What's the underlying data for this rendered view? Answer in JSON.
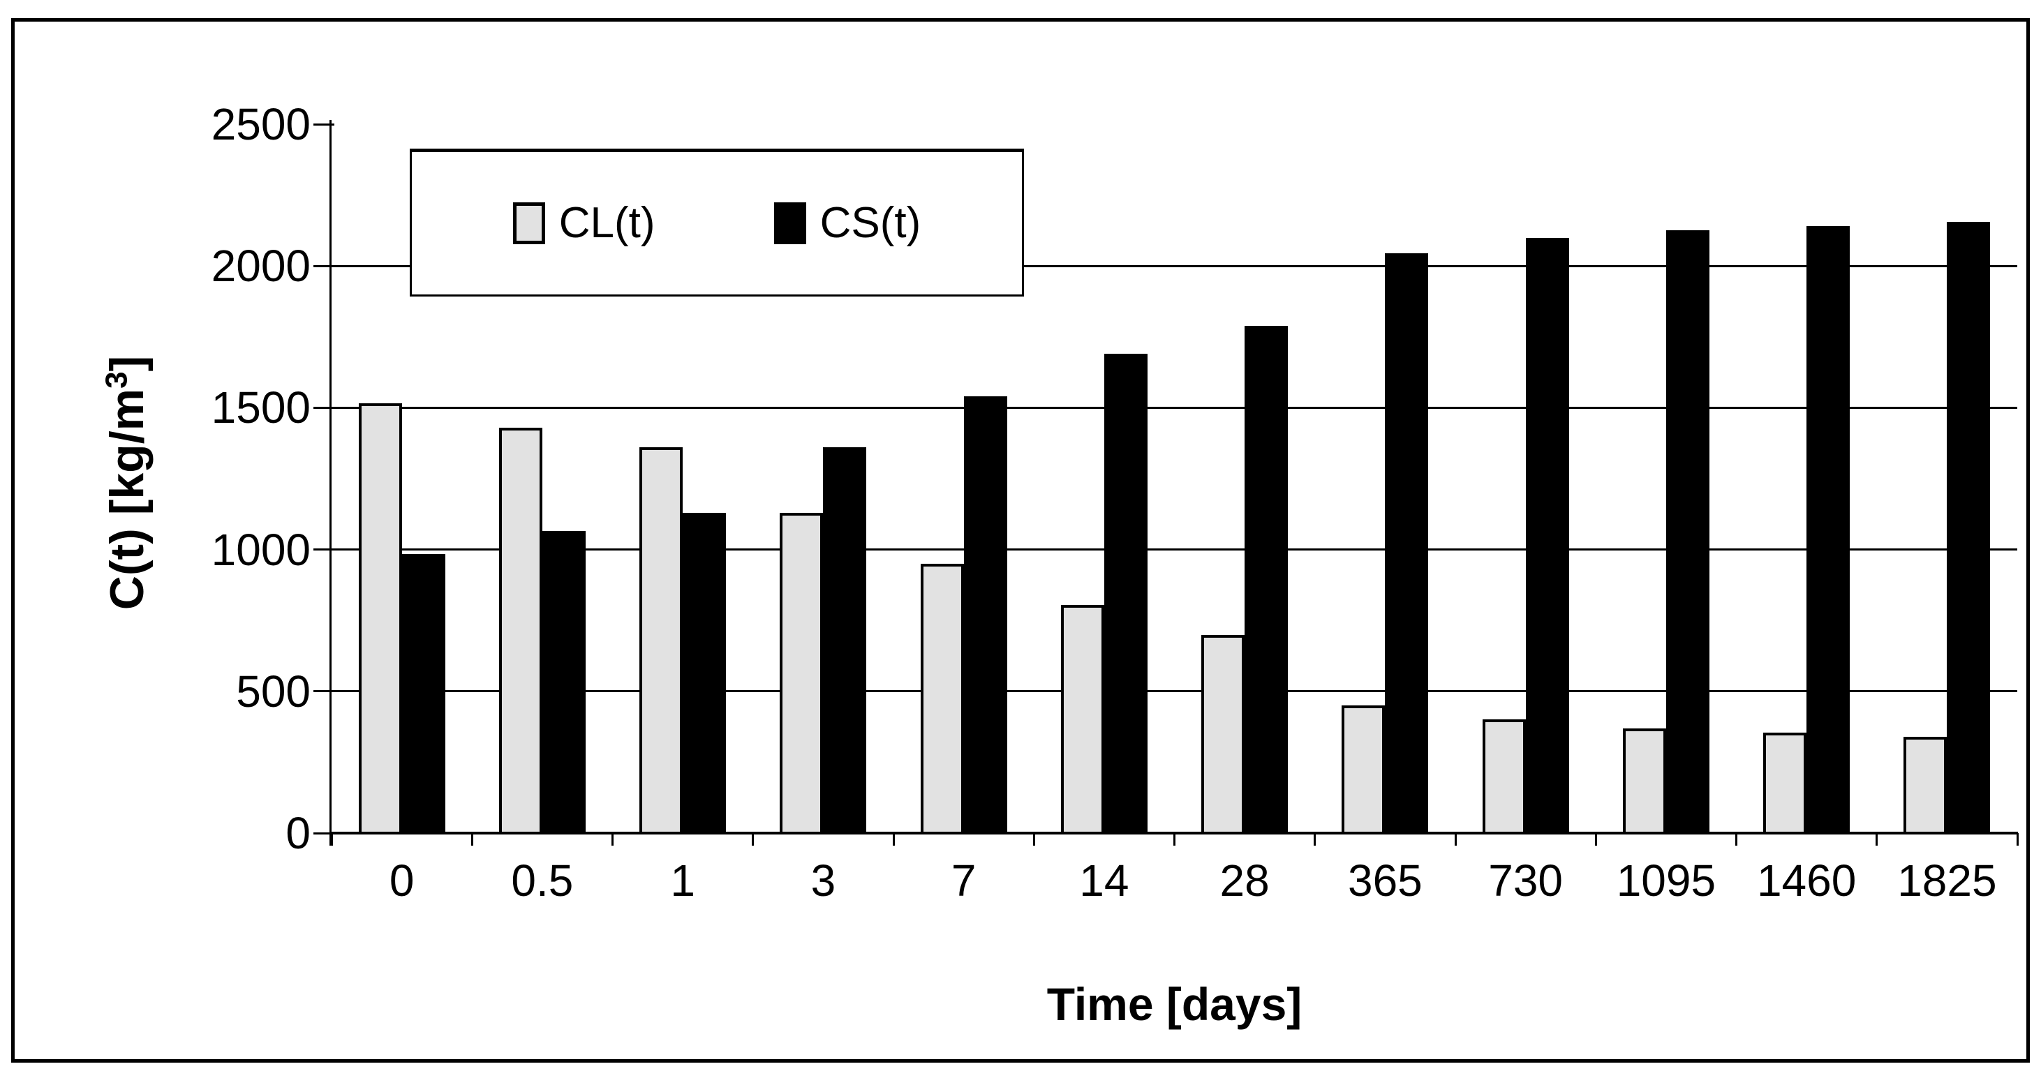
{
  "chart_data": {
    "type": "bar",
    "title": "",
    "categories": [
      "0",
      "0.5",
      "1",
      "3",
      "7",
      "14",
      "28",
      "365",
      "730",
      "1095",
      "1460",
      "1825"
    ],
    "series": [
      {
        "name": "CL(t)",
        "color": "#E2E2E2",
        "border_color": "#000000",
        "values": [
          1515,
          1430,
          1360,
          1130,
          950,
          805,
          700,
          450,
          400,
          370,
          355,
          340
        ]
      },
      {
        "name": "CS(t)",
        "color": "#000000",
        "border_color": "#000000",
        "values": [
          985,
          1065,
          1130,
          1360,
          1540,
          1690,
          1790,
          2045,
          2100,
          2125,
          2140,
          2155
        ]
      }
    ],
    "xlabel": "Time [days]",
    "ylabel": "C(t) [kg/m3]",
    "ylabel_parts": {
      "prefix": "C(t) [kg/m",
      "sup": "3",
      "suffix": "]"
    },
    "ylim": [
      0,
      2500
    ],
    "ytick_interval": 500,
    "ytick_labels": [
      "0",
      "500",
      "1000",
      "1500",
      "2000",
      "2500"
    ],
    "gridline_values": [
      500,
      1000,
      1500,
      2000
    ],
    "grid": "horizontal",
    "legend_position": "top-left-inside",
    "background_color": "#FFFFFF",
    "frame_color": "#000000"
  }
}
